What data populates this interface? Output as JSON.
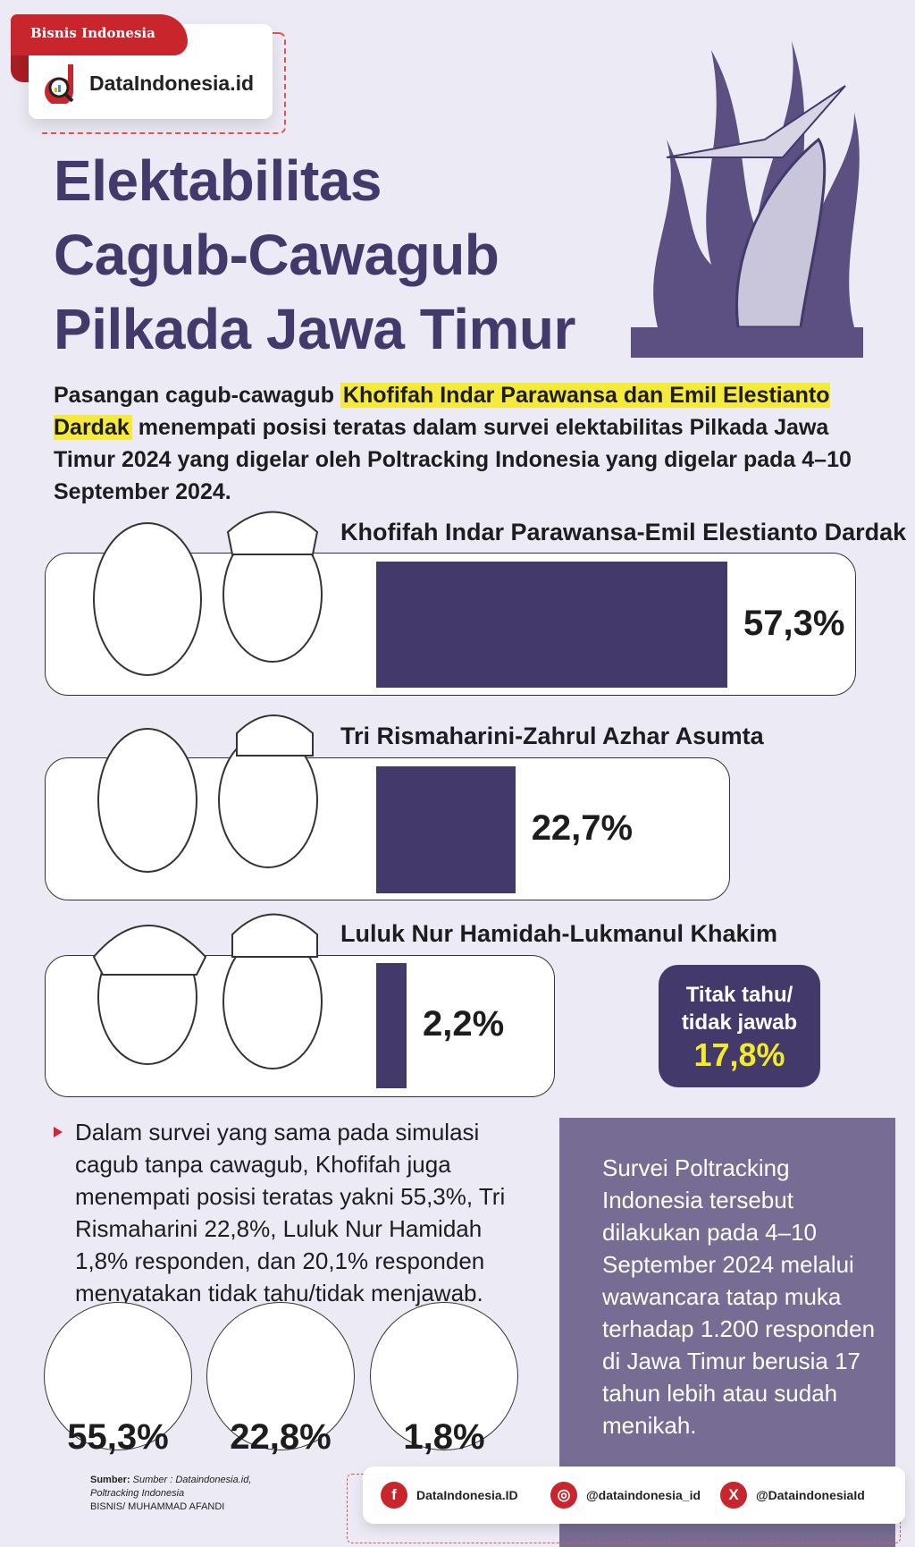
{
  "brand": {
    "publisher": "Bisnis Indonesia",
    "site": "DataIndonesia.id"
  },
  "title": [
    "Elektabilitas",
    "Cagub-Cawagub",
    "Pilkada Jawa Timur"
  ],
  "intro": {
    "before": "Pasangan cagub-cawagub ",
    "highlight": "Khofifah Indar Parawansa dan Emil Elestianto Dardak",
    "after": " menempati posisi teratas dalam survei elektabilitas Pilkada Jawa Timur 2024 yang digelar oleh Poltracking Indonesia yang digelar pada 4–10 September 2024."
  },
  "chart_data": {
    "type": "bar",
    "categories": [
      "Khofifah Indar Parawansa-Emil Elestianto Dardak",
      "Tri Rismaharini-Zahrul Azhar Asumta",
      "Luluk Nur Hamidah-Lukmanul Khakim"
    ],
    "values": [
      57.3,
      22.7,
      2.2
    ],
    "labels": [
      "57,3%",
      "22,7%",
      "2,2%"
    ],
    "unit": "%",
    "bar_color": "#433a6b"
  },
  "undecided": {
    "label_line1": "Titak tahu/",
    "label_line2": "tidak jawab",
    "value": "17,8%"
  },
  "bullet_text": "Dalam survei yang sama pada simulasi cagub tanpa cawagub, Khofifah juga menempati posisi teratas yakni 55,3%, Tri Rismaharini 22,8%, Luluk Nur Hamidah 1,8% responden, dan 20,1% responden menyatakan tidak tahu/tidak menjawab.",
  "solo": [
    {
      "value": "55,3%"
    },
    {
      "value": "22,8%"
    },
    {
      "value": "1,8%"
    }
  ],
  "info": "Survei Poltracking Indonesia tersebut dilakukan pada 4–10 September 2024 melalui wawancara tatap muka terhadap 1.200 responden di Jawa Timur berusia 17 tahun lebih atau sudah menikah.",
  "source": {
    "label": "Sumber:",
    "text": " Sumber : Dataindonesia.id,",
    "line2": "Poltracking Indonesia",
    "credit": "BISNIS/ MUHAMMAD AFANDI"
  },
  "social": [
    {
      "icon": "facebook-icon",
      "glyph": "f",
      "handle": "DataIndonesia.ID"
    },
    {
      "icon": "instagram-icon",
      "glyph": "◎",
      "handle": "@dataindonesia_id"
    },
    {
      "icon": "x-icon",
      "glyph": "X",
      "handle": "@DataindonesiaId"
    }
  ],
  "colors": {
    "background": "#ecebf5",
    "primary": "#433a6b",
    "info_box": "#776c93",
    "highlight": "#f5ea3c",
    "accent": "#c9252c"
  }
}
